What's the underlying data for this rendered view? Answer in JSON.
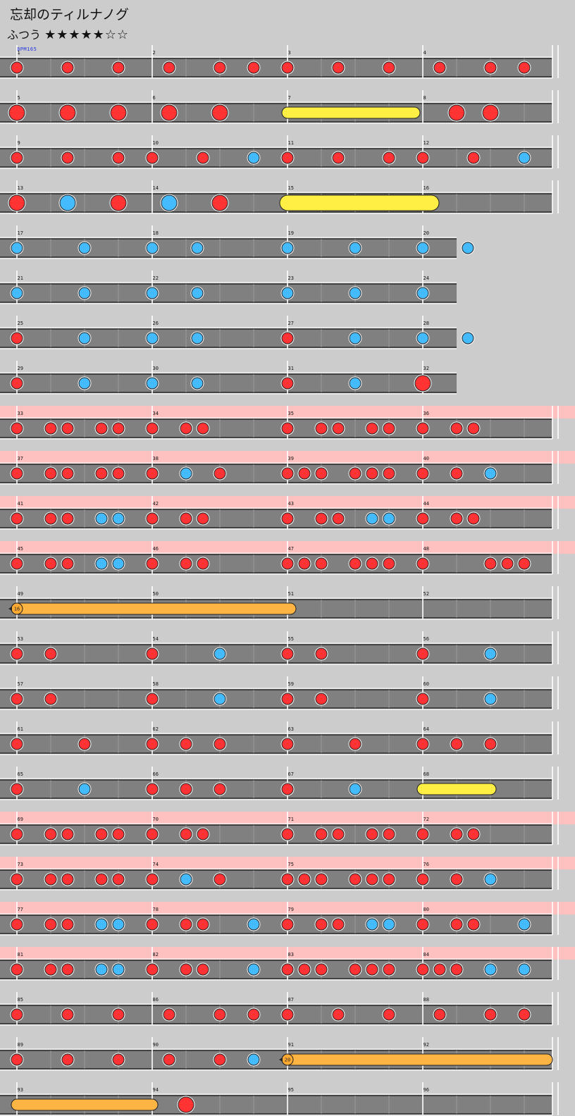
{
  "title": "忘却のティルナノグ",
  "difficulty": {
    "label": "ふつう",
    "stars": "★★★★★☆☆",
    "level_filled": 5,
    "level_max": 7
  },
  "bpm": "BPM165",
  "colors": {
    "don": "#ff3333",
    "ka": "#44bbff",
    "roll": "#ffee44",
    "balloon": "#ffb444",
    "gogo": "#ffc0c0"
  },
  "rows": [
    {
      "start": 1,
      "measures": 4,
      "gogo": false,
      "notes": [
        [
          0,
          "d"
        ],
        [
          0.375,
          "d"
        ],
        [
          0.75,
          "d"
        ],
        [
          1.125,
          "d"
        ],
        [
          1.5,
          "d"
        ],
        [
          1.75,
          "d"
        ],
        [
          2,
          "d"
        ],
        [
          2.375,
          "d"
        ],
        [
          2.75,
          "d"
        ],
        [
          3.125,
          "d"
        ],
        [
          3.5,
          "d"
        ],
        [
          3.75,
          "d"
        ]
      ]
    },
    {
      "start": 5,
      "measures": 4,
      "gogo": false,
      "notes": [
        [
          0,
          "D"
        ],
        [
          0.375,
          "D"
        ],
        [
          0.75,
          "D"
        ],
        [
          1.125,
          "D"
        ],
        [
          1.5,
          "D"
        ],
        [
          3.25,
          "D"
        ],
        [
          3.5,
          "D"
        ]
      ],
      "rolls": [
        [
          2,
          2.9375,
          "r"
        ]
      ]
    },
    {
      "start": 9,
      "measures": 4,
      "gogo": false,
      "notes": [
        [
          0,
          "d"
        ],
        [
          0.375,
          "d"
        ],
        [
          0.75,
          "d"
        ],
        [
          1,
          "d"
        ],
        [
          1.375,
          "d"
        ],
        [
          1.75,
          "k"
        ],
        [
          2,
          "d"
        ],
        [
          2.375,
          "d"
        ],
        [
          2.75,
          "d"
        ],
        [
          3,
          "d"
        ],
        [
          3.375,
          "d"
        ],
        [
          3.75,
          "k"
        ]
      ]
    },
    {
      "start": 13,
      "measures": 4,
      "gogo": false,
      "notes": [
        [
          0,
          "D"
        ],
        [
          0.375,
          "K"
        ],
        [
          0.75,
          "D"
        ],
        [
          1.125,
          "K"
        ],
        [
          1.5,
          "D"
        ]
      ],
      "rolls": [
        [
          2,
          3.0625,
          "R"
        ]
      ]
    },
    {
      "start": 17,
      "measures": 4,
      "len": 3.25,
      "gogo": false,
      "notes": [
        [
          0,
          "k"
        ],
        [
          0.5,
          "k"
        ],
        [
          1,
          "k"
        ],
        [
          1.333,
          "k"
        ],
        [
          2,
          "k"
        ],
        [
          2.5,
          "k"
        ],
        [
          3,
          "k"
        ],
        [
          3.333,
          "k"
        ]
      ]
    },
    {
      "start": 21,
      "measures": 4,
      "len": 3.25,
      "gogo": false,
      "notes": [
        [
          0,
          "k"
        ],
        [
          0.5,
          "k"
        ],
        [
          1,
          "k"
        ],
        [
          1.333,
          "k"
        ],
        [
          2,
          "k"
        ],
        [
          2.5,
          "k"
        ],
        [
          3,
          "k"
        ]
      ]
    },
    {
      "start": 25,
      "measures": 4,
      "len": 3.25,
      "gogo": false,
      "notes": [
        [
          0,
          "d"
        ],
        [
          0.5,
          "k"
        ],
        [
          1,
          "k"
        ],
        [
          1.333,
          "k"
        ],
        [
          2,
          "d"
        ],
        [
          2.5,
          "k"
        ],
        [
          3,
          "k"
        ],
        [
          3.333,
          "k"
        ]
      ]
    },
    {
      "start": 29,
      "measures": 4,
      "len": 3.25,
      "gogo": false,
      "notes": [
        [
          0,
          "d"
        ],
        [
          0.5,
          "k"
        ],
        [
          1,
          "k"
        ],
        [
          1.333,
          "k"
        ],
        [
          2,
          "d"
        ],
        [
          2.5,
          "k"
        ],
        [
          3,
          "D"
        ]
      ]
    },
    {
      "start": 33,
      "measures": 4,
      "gogo": true,
      "notes": [
        [
          0,
          "d"
        ],
        [
          0.25,
          "d"
        ],
        [
          0.375,
          "d"
        ],
        [
          0.625,
          "d"
        ],
        [
          0.75,
          "d"
        ],
        [
          1,
          "d"
        ],
        [
          1.25,
          "d"
        ],
        [
          1.375,
          "d"
        ],
        [
          2,
          "d"
        ],
        [
          2.25,
          "d"
        ],
        [
          2.375,
          "d"
        ],
        [
          2.625,
          "d"
        ],
        [
          2.75,
          "d"
        ],
        [
          3,
          "d"
        ],
        [
          3.25,
          "d"
        ],
        [
          3.375,
          "d"
        ]
      ]
    },
    {
      "start": 37,
      "measures": 4,
      "gogo": true,
      "notes": [
        [
          0,
          "d"
        ],
        [
          0.25,
          "d"
        ],
        [
          0.375,
          "d"
        ],
        [
          0.625,
          "d"
        ],
        [
          0.75,
          "d"
        ],
        [
          1,
          "d"
        ],
        [
          1.25,
          "k"
        ],
        [
          1.5,
          "d"
        ],
        [
          2,
          "d"
        ],
        [
          2.125,
          "d"
        ],
        [
          2.25,
          "d"
        ],
        [
          2.5,
          "d"
        ],
        [
          2.625,
          "d"
        ],
        [
          2.75,
          "d"
        ],
        [
          3,
          "d"
        ],
        [
          3.25,
          "d"
        ],
        [
          3.5,
          "k"
        ]
      ]
    },
    {
      "start": 41,
      "measures": 4,
      "gogo": true,
      "notes": [
        [
          0,
          "d"
        ],
        [
          0.25,
          "d"
        ],
        [
          0.375,
          "d"
        ],
        [
          0.625,
          "k"
        ],
        [
          0.75,
          "k"
        ],
        [
          1,
          "d"
        ],
        [
          1.25,
          "d"
        ],
        [
          1.375,
          "d"
        ],
        [
          2,
          "d"
        ],
        [
          2.25,
          "d"
        ],
        [
          2.375,
          "d"
        ],
        [
          2.625,
          "k"
        ],
        [
          2.75,
          "k"
        ],
        [
          3,
          "d"
        ],
        [
          3.25,
          "d"
        ],
        [
          3.375,
          "d"
        ]
      ]
    },
    {
      "start": 45,
      "measures": 4,
      "gogo": true,
      "notes": [
        [
          0,
          "d"
        ],
        [
          0.25,
          "d"
        ],
        [
          0.375,
          "d"
        ],
        [
          0.625,
          "k"
        ],
        [
          0.75,
          "k"
        ],
        [
          1,
          "d"
        ],
        [
          1.25,
          "d"
        ],
        [
          1.375,
          "d"
        ],
        [
          2,
          "d"
        ],
        [
          2.125,
          "d"
        ],
        [
          2.25,
          "d"
        ],
        [
          2.5,
          "d"
        ],
        [
          2.625,
          "d"
        ],
        [
          2.75,
          "d"
        ],
        [
          3,
          "d"
        ],
        [
          3.5,
          "d"
        ],
        [
          3.625,
          "d"
        ],
        [
          3.75,
          "d"
        ]
      ]
    },
    {
      "start": 49,
      "measures": 4,
      "gogo": false,
      "notes": [],
      "balloons": [
        [
          0,
          2.0625,
          "16"
        ]
      ]
    },
    {
      "start": 53,
      "measures": 4,
      "gogo": false,
      "notes": [
        [
          0,
          "d"
        ],
        [
          0.25,
          "d"
        ],
        [
          1,
          "d"
        ],
        [
          1.5,
          "k"
        ],
        [
          2,
          "d"
        ],
        [
          2.25,
          "d"
        ],
        [
          3,
          "d"
        ],
        [
          3.5,
          "k"
        ]
      ]
    },
    {
      "start": 57,
      "measures": 4,
      "gogo": false,
      "notes": [
        [
          0,
          "d"
        ],
        [
          0.25,
          "d"
        ],
        [
          1,
          "d"
        ],
        [
          1.5,
          "k"
        ],
        [
          2,
          "d"
        ],
        [
          2.25,
          "d"
        ],
        [
          3,
          "d"
        ],
        [
          3.5,
          "k"
        ]
      ]
    },
    {
      "start": 61,
      "measures": 4,
      "gogo": false,
      "notes": [
        [
          0,
          "d"
        ],
        [
          0.5,
          "d"
        ],
        [
          1,
          "d"
        ],
        [
          1.25,
          "d"
        ],
        [
          1.5,
          "d"
        ],
        [
          2,
          "d"
        ],
        [
          2.5,
          "d"
        ],
        [
          3,
          "d"
        ],
        [
          3.25,
          "d"
        ],
        [
          3.5,
          "d"
        ]
      ]
    },
    {
      "start": 65,
      "measures": 4,
      "gogo": false,
      "notes": [
        [
          0,
          "d"
        ],
        [
          0.5,
          "k"
        ],
        [
          1,
          "d"
        ],
        [
          1.25,
          "d"
        ],
        [
          1.5,
          "d"
        ],
        [
          2,
          "d"
        ],
        [
          2.5,
          "k"
        ]
      ],
      "rolls": [
        [
          3,
          3.5,
          "r"
        ]
      ]
    },
    {
      "start": 69,
      "measures": 4,
      "gogo": true,
      "notes": [
        [
          0,
          "d"
        ],
        [
          0.25,
          "d"
        ],
        [
          0.375,
          "d"
        ],
        [
          0.625,
          "d"
        ],
        [
          0.75,
          "d"
        ],
        [
          1,
          "d"
        ],
        [
          1.25,
          "d"
        ],
        [
          1.375,
          "d"
        ],
        [
          2,
          "d"
        ],
        [
          2.25,
          "d"
        ],
        [
          2.375,
          "d"
        ],
        [
          2.625,
          "d"
        ],
        [
          2.75,
          "d"
        ],
        [
          3,
          "d"
        ],
        [
          3.25,
          "d"
        ],
        [
          3.375,
          "d"
        ]
      ]
    },
    {
      "start": 73,
      "measures": 4,
      "gogo": true,
      "notes": [
        [
          0,
          "d"
        ],
        [
          0.25,
          "d"
        ],
        [
          0.375,
          "d"
        ],
        [
          0.625,
          "d"
        ],
        [
          0.75,
          "d"
        ],
        [
          1,
          "d"
        ],
        [
          1.25,
          "k"
        ],
        [
          1.5,
          "d"
        ],
        [
          2,
          "d"
        ],
        [
          2.125,
          "d"
        ],
        [
          2.25,
          "d"
        ],
        [
          2.5,
          "d"
        ],
        [
          2.625,
          "d"
        ],
        [
          2.75,
          "d"
        ],
        [
          3,
          "d"
        ],
        [
          3.25,
          "d"
        ],
        [
          3.5,
          "k"
        ]
      ]
    },
    {
      "start": 77,
      "measures": 4,
      "gogo": true,
      "notes": [
        [
          0,
          "d"
        ],
        [
          0.25,
          "d"
        ],
        [
          0.375,
          "d"
        ],
        [
          0.625,
          "k"
        ],
        [
          0.75,
          "k"
        ],
        [
          1,
          "d"
        ],
        [
          1.25,
          "d"
        ],
        [
          1.375,
          "d"
        ],
        [
          1.75,
          "k"
        ],
        [
          2,
          "d"
        ],
        [
          2.25,
          "d"
        ],
        [
          2.375,
          "d"
        ],
        [
          2.625,
          "k"
        ],
        [
          2.75,
          "k"
        ],
        [
          3,
          "d"
        ],
        [
          3.25,
          "d"
        ],
        [
          3.375,
          "d"
        ],
        [
          3.75,
          "k"
        ]
      ]
    },
    {
      "start": 81,
      "measures": 4,
      "gogo": true,
      "notes": [
        [
          0,
          "d"
        ],
        [
          0.25,
          "d"
        ],
        [
          0.375,
          "d"
        ],
        [
          0.625,
          "k"
        ],
        [
          0.75,
          "k"
        ],
        [
          1,
          "d"
        ],
        [
          1.25,
          "d"
        ],
        [
          1.375,
          "d"
        ],
        [
          1.75,
          "k"
        ],
        [
          2,
          "d"
        ],
        [
          2.125,
          "d"
        ],
        [
          2.25,
          "d"
        ],
        [
          2.5,
          "d"
        ],
        [
          2.625,
          "d"
        ],
        [
          2.75,
          "d"
        ],
        [
          3,
          "d"
        ],
        [
          3.125,
          "d"
        ],
        [
          3.25,
          "d"
        ],
        [
          3.5,
          "k"
        ],
        [
          3.75,
          "k"
        ]
      ]
    },
    {
      "start": 85,
      "measures": 4,
      "gogo": false,
      "notes": [
        [
          0,
          "d"
        ],
        [
          0.375,
          "d"
        ],
        [
          0.75,
          "d"
        ],
        [
          1.125,
          "d"
        ],
        [
          1.5,
          "d"
        ],
        [
          1.75,
          "d"
        ],
        [
          2,
          "d"
        ],
        [
          2.375,
          "d"
        ],
        [
          2.75,
          "d"
        ],
        [
          3.125,
          "d"
        ],
        [
          3.5,
          "d"
        ],
        [
          3.75,
          "d"
        ]
      ]
    },
    {
      "start": 89,
      "measures": 4,
      "gogo": false,
      "notes": [
        [
          0,
          "d"
        ],
        [
          0.375,
          "d"
        ],
        [
          0.75,
          "d"
        ],
        [
          1.125,
          "d"
        ],
        [
          1.5,
          "d"
        ],
        [
          1.75,
          "k"
        ]
      ],
      "balloons": [
        [
          2,
          4,
          "20"
        ]
      ]
    },
    {
      "start": 93,
      "measures": 4,
      "gogo": false,
      "notes": [
        [
          1.25,
          "D"
        ]
      ],
      "rolls": [
        [
          0,
          1,
          "b"
        ]
      ]
    }
  ]
}
